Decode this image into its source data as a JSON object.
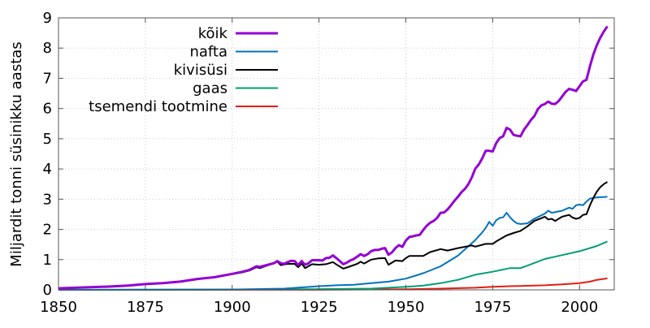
{
  "chart_data": {
    "type": "line",
    "title": "",
    "xlabel": "",
    "ylabel": "Miljardit tonni süsinikku aastas",
    "xlim": [
      1850,
      2010
    ],
    "ylim": [
      0,
      9
    ],
    "xticks": [
      1850,
      1875,
      1900,
      1925,
      1950,
      1975,
      2000
    ],
    "yticks": [
      0,
      1,
      2,
      3,
      4,
      5,
      6,
      7,
      8,
      9
    ],
    "grid": true,
    "legend_position": "top-left",
    "series": [
      {
        "name": "kõik",
        "color": "#9400d3",
        "width": 3,
        "x": [
          1850,
          1855,
          1860,
          1865,
          1870,
          1875,
          1880,
          1885,
          1890,
          1895,
          1900,
          1903,
          1905,
          1907,
          1908,
          1910,
          1912,
          1913,
          1914,
          1915,
          1916,
          1917,
          1918,
          1919,
          1920,
          1921,
          1922,
          1923,
          1925,
          1926,
          1927,
          1928,
          1929,
          1930,
          1931,
          1932,
          1933,
          1934,
          1935,
          1936,
          1937,
          1938,
          1939,
          1940,
          1941,
          1942,
          1943,
          1944,
          1945,
          1946,
          1947,
          1948,
          1949,
          1950,
          1951,
          1952,
          1953,
          1954,
          1955,
          1956,
          1957,
          1958,
          1959,
          1960,
          1961,
          1962,
          1963,
          1964,
          1965,
          1966,
          1967,
          1968,
          1969,
          1970,
          1971,
          1972,
          1973,
          1974,
          1975,
          1976,
          1977,
          1978,
          1979,
          1980,
          1981,
          1982,
          1983,
          1984,
          1985,
          1986,
          1987,
          1988,
          1989,
          1990,
          1991,
          1992,
          1993,
          1994,
          1995,
          1996,
          1997,
          1998,
          1999,
          2000,
          2001,
          2002,
          2003,
          2004,
          2005,
          2006,
          2007,
          2008
        ],
        "y": [
          0.05,
          0.07,
          0.09,
          0.11,
          0.14,
          0.19,
          0.22,
          0.27,
          0.36,
          0.42,
          0.53,
          0.6,
          0.66,
          0.78,
          0.76,
          0.82,
          0.88,
          0.95,
          0.88,
          0.86,
          0.92,
          0.96,
          0.95,
          0.82,
          0.95,
          0.83,
          0.88,
          0.98,
          0.98,
          0.97,
          1.05,
          1.06,
          1.14,
          1.05,
          0.95,
          0.85,
          0.9,
          0.97,
          1.02,
          1.1,
          1.18,
          1.12,
          1.18,
          1.28,
          1.32,
          1.32,
          1.36,
          1.38,
          1.16,
          1.24,
          1.38,
          1.48,
          1.42,
          1.63,
          1.75,
          1.77,
          1.8,
          1.82,
          1.98,
          2.12,
          2.22,
          2.28,
          2.38,
          2.55,
          2.56,
          2.66,
          2.8,
          2.95,
          3.08,
          3.23,
          3.34,
          3.5,
          3.72,
          4.01,
          4.15,
          4.35,
          4.6,
          4.6,
          4.58,
          4.85,
          5.02,
          5.08,
          5.36,
          5.3,
          5.13,
          5.1,
          5.08,
          5.3,
          5.45,
          5.62,
          5.75,
          5.98,
          6.1,
          6.15,
          6.23,
          6.16,
          6.15,
          6.25,
          6.4,
          6.55,
          6.65,
          6.62,
          6.58,
          6.74,
          6.9,
          6.95,
          7.4,
          7.8,
          8.1,
          8.35,
          8.55,
          8.72
        ]
      },
      {
        "name": "nafta",
        "color": "#0072bd",
        "width": 2,
        "x": [
          1850,
          1890,
          1900,
          1910,
          1915,
          1920,
          1925,
          1930,
          1935,
          1940,
          1945,
          1950,
          1955,
          1960,
          1965,
          1970,
          1972,
          1973,
          1974,
          1975,
          1976,
          1977,
          1978,
          1979,
          1980,
          1981,
          1982,
          1983,
          1985,
          1987,
          1990,
          1991,
          1992,
          1995,
          1997,
          1998,
          1999,
          2000,
          2001,
          2002,
          2003,
          2005,
          2008
        ],
        "y": [
          0,
          0.005,
          0.01,
          0.03,
          0.04,
          0.08,
          0.12,
          0.15,
          0.17,
          0.22,
          0.27,
          0.37,
          0.55,
          0.78,
          1.13,
          1.65,
          1.9,
          2.05,
          2.25,
          2.12,
          2.3,
          2.38,
          2.4,
          2.55,
          2.4,
          2.28,
          2.2,
          2.18,
          2.2,
          2.35,
          2.52,
          2.62,
          2.55,
          2.62,
          2.72,
          2.68,
          2.8,
          2.82,
          2.8,
          2.92,
          3.02,
          3.06,
          3.08
        ]
      },
      {
        "name": "kivisüsi",
        "color": "#000000",
        "width": 2,
        "x": [
          1850,
          1855,
          1860,
          1865,
          1870,
          1875,
          1880,
          1885,
          1890,
          1895,
          1900,
          1903,
          1905,
          1907,
          1908,
          1910,
          1913,
          1914,
          1916,
          1918,
          1919,
          1920,
          1921,
          1923,
          1925,
          1927,
          1929,
          1930,
          1932,
          1934,
          1936,
          1937,
          1938,
          1940,
          1942,
          1944,
          1945,
          1947,
          1949,
          1950,
          1951,
          1955,
          1957,
          1960,
          1962,
          1965,
          1969,
          1970,
          1973,
          1975,
          1976,
          1979,
          1981,
          1983,
          1985,
          1987,
          1989,
          1990,
          1991,
          1992,
          1993,
          1995,
          1997,
          1998,
          1999,
          2000,
          2001,
          2002,
          2003,
          2004,
          2005,
          2006,
          2007,
          2008
        ],
        "y": [
          0.05,
          0.07,
          0.09,
          0.11,
          0.14,
          0.19,
          0.22,
          0.27,
          0.36,
          0.42,
          0.52,
          0.58,
          0.64,
          0.75,
          0.72,
          0.8,
          0.93,
          0.82,
          0.86,
          0.86,
          0.75,
          0.87,
          0.72,
          0.85,
          0.83,
          0.85,
          0.92,
          0.84,
          0.7,
          0.78,
          0.86,
          0.93,
          0.87,
          1.0,
          1.04,
          1.05,
          0.83,
          0.97,
          0.95,
          1.05,
          1.12,
          1.12,
          1.25,
          1.35,
          1.3,
          1.38,
          1.47,
          1.43,
          1.52,
          1.52,
          1.6,
          1.8,
          1.88,
          1.95,
          2.1,
          2.28,
          2.37,
          2.42,
          2.33,
          2.35,
          2.28,
          2.42,
          2.48,
          2.39,
          2.35,
          2.38,
          2.48,
          2.5,
          2.8,
          3.05,
          3.25,
          3.4,
          3.5,
          3.57
        ]
      },
      {
        "name": "gaas",
        "color": "#009e73",
        "width": 2,
        "x": [
          1850,
          1900,
          1920,
          1940,
          1950,
          1955,
          1960,
          1965,
          1970,
          1975,
          1980,
          1983,
          1985,
          1990,
          1995,
          2000,
          2005,
          2008
        ],
        "y": [
          0,
          0.01,
          0.02,
          0.04,
          0.1,
          0.14,
          0.22,
          0.33,
          0.5,
          0.6,
          0.72,
          0.72,
          0.8,
          1.02,
          1.15,
          1.28,
          1.45,
          1.6
        ]
      },
      {
        "name": "tsemendi tootmine",
        "color": "#e51e10",
        "width": 2,
        "x": [
          1850,
          1930,
          1950,
          1960,
          1970,
          1975,
          1980,
          1990,
          1995,
          2000,
          2003,
          2005,
          2008
        ],
        "y": [
          0,
          0.005,
          0.02,
          0.04,
          0.07,
          0.1,
          0.12,
          0.15,
          0.18,
          0.22,
          0.27,
          0.33,
          0.38
        ]
      }
    ]
  }
}
